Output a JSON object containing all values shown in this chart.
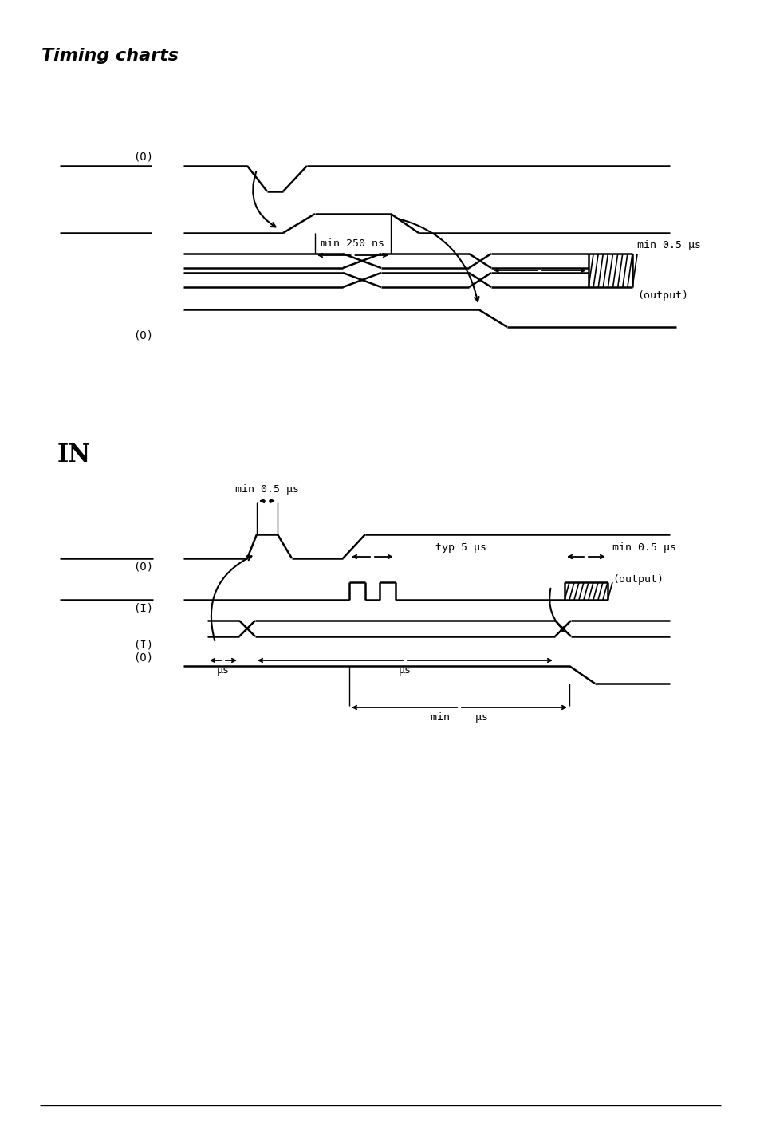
{
  "title": "Timing charts",
  "bg_color": "#ffffff",
  "line_color": "#000000",
  "in_label": "IN",
  "d1_ann1": "min 250 ns",
  "d1_ann2": "min 0.5 μs",
  "d1_ann3": "(output)",
  "d2_ann1": "min 0.5 μs",
  "d2_ann2": "typ 5 μs",
  "d2_ann3": "min 0.5 μs",
  "d2_ann4": "(output)",
  "d2_ann5": "μs",
  "d2_ann6": "μs",
  "d2_ann7": "min    μs"
}
